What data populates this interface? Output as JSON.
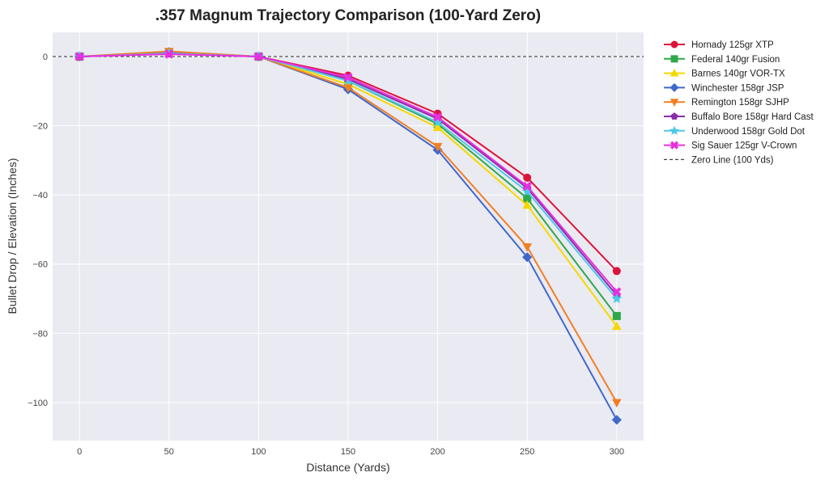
{
  "chart_data": {
    "type": "line",
    "title": ".357 Magnum Trajectory Comparison (100-Yard Zero)",
    "xlabel": "Distance (Yards)",
    "ylabel": "Bullet Drop / Elevation (Inches)",
    "x": [
      0,
      50,
      100,
      150,
      200,
      250,
      300
    ],
    "x_ticks": [
      "0",
      "50",
      "100",
      "150",
      "200",
      "250",
      "300"
    ],
    "y_ticks": [
      "0",
      "−20",
      "−40",
      "−60",
      "−80",
      "−100"
    ],
    "y_tick_values": [
      0,
      -20,
      -40,
      -60,
      -80,
      -100
    ],
    "xlim": [
      -15,
      315
    ],
    "ylim": [
      -111,
      7
    ],
    "grid": true,
    "legend_position": "outside-top-right",
    "series": [
      {
        "name": "Hornady 125gr XTP",
        "color": "#dc143c",
        "marker": "circle",
        "values": [
          0,
          0.9,
          0,
          -5.5,
          -16.5,
          -35,
          -62
        ]
      },
      {
        "name": "Federal 140gr Fusion",
        "color": "#2ea84a",
        "marker": "square",
        "values": [
          0,
          1.1,
          0,
          -7,
          -19.5,
          -41,
          -75
        ]
      },
      {
        "name": "Barnes 140gr VOR-TX",
        "color": "#f5d800",
        "marker": "triangle-up",
        "values": [
          0,
          1.2,
          0,
          -8,
          -20.5,
          -43,
          -78
        ]
      },
      {
        "name": "Winchester 158gr JSP",
        "color": "#4169c8",
        "marker": "diamond",
        "values": [
          0,
          1.3,
          0,
          -9.5,
          -27,
          -58,
          -105
        ]
      },
      {
        "name": "Remington 158gr SJHP",
        "color": "#f07f24",
        "marker": "triangle-down",
        "values": [
          0,
          1.5,
          0,
          -9,
          -26,
          -55,
          -100
        ]
      },
      {
        "name": "Buffalo Bore 158gr Hard Cast",
        "color": "#8a2ea8",
        "marker": "pentagon",
        "values": [
          0,
          0.8,
          0,
          -6.5,
          -18,
          -38,
          -69
        ]
      },
      {
        "name": "Underwood 158gr Gold Dot",
        "color": "#4dc8e8",
        "marker": "star",
        "values": [
          0,
          0.9,
          0,
          -7,
          -19,
          -39,
          -70
        ]
      },
      {
        "name": "Sig Sauer 125gr V-Crown",
        "color": "#e830e0",
        "marker": "x",
        "values": [
          0,
          0.7,
          0,
          -6,
          -17.5,
          -37.5,
          -68
        ]
      }
    ],
    "reference_line": {
      "name": "Zero Line (100 Yds)",
      "y": 0,
      "color": "#444444",
      "style": "dashed"
    }
  }
}
